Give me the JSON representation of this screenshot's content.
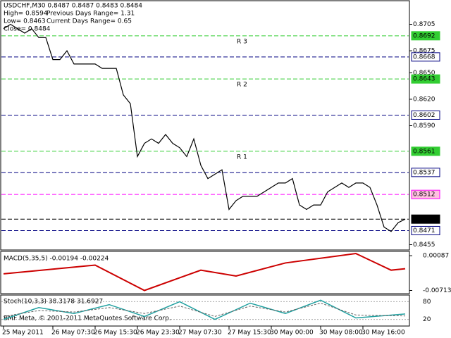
{
  "chart_data": {
    "type": "line",
    "title": "USDCHF,M30  0.8487 0.8487 0.8483 0.8484",
    "info": [
      "High= 0.8594",
      "Previous Days Range= 1.31",
      "Low= 0.8463",
      "Current Days Range= 0.65",
      "Close= 0.8484"
    ],
    "copyright": "BMF Meta, © 2001-2011 MetaQuotes Software Corp.",
    "categories": [
      "25 May 2011",
      null,
      null,
      null,
      null,
      null,
      null,
      "26 May 07:30",
      null,
      null,
      null,
      null,
      null,
      "26 May 15:30",
      null,
      null,
      null,
      null,
      null,
      "26 May 23:30",
      null,
      null,
      null,
      null,
      null,
      "27 May 07:30",
      null,
      null,
      null,
      null,
      null,
      null,
      "27 May 15:30",
      null,
      null,
      null,
      null,
      null,
      "30 May 00:00",
      null,
      null,
      null,
      null,
      null,
      null,
      "30 May 08:00",
      null,
      null,
      null,
      null,
      null,
      "30 May 16:00",
      null,
      null,
      null,
      null,
      null,
      null
    ],
    "series": [
      {
        "name": "USDCHF",
        "color": "#000000",
        "values": [
          0.87,
          0.8705,
          0.87,
          0.8695,
          0.87,
          0.869,
          0.869,
          0.8665,
          0.8665,
          0.8675,
          0.866,
          0.866,
          0.866,
          0.866,
          0.8655,
          0.8655,
          0.8655,
          0.8625,
          0.8615,
          0.8555,
          0.857,
          0.8575,
          0.857,
          0.858,
          0.857,
          0.8565,
          0.8555,
          0.8575,
          0.8545,
          0.853,
          0.8535,
          0.854,
          0.8495,
          0.8505,
          0.851,
          0.851,
          0.851,
          0.8515,
          0.852,
          0.8525,
          0.8525,
          0.853,
          0.85,
          0.8495,
          0.85,
          0.85,
          0.8515,
          0.852,
          0.8525,
          0.852,
          0.8525,
          0.8525,
          0.852,
          0.85,
          0.8475,
          0.847,
          0.848,
          0.8484
        ]
      }
    ],
    "ylim": [
      0.8449,
      0.8731
    ],
    "yticks": [
      0.8705,
      0.8675,
      {
        "value": 0.865,
        "label": "0.8650"
      },
      {
        "value": 0.862,
        "label": "0.8620"
      },
      {
        "value": 0.859,
        "label": "0.8590"
      },
      0.8455
    ],
    "levels": [
      {
        "value": 0.8692,
        "color": "#32cd32",
        "label": "R 3",
        "box": "#32cd32"
      },
      {
        "value": 0.8668,
        "color": "#000080",
        "box": "#ffffff"
      },
      {
        "value": 0.8643,
        "color": "#32cd32",
        "label": "R 2",
        "box": "#32cd32"
      },
      {
        "value": 0.8602,
        "color": "#000080",
        "box": "#ffffff"
      },
      {
        "value": 0.8561,
        "color": "#32cd32",
        "label": "R 1",
        "box": "#32cd32"
      },
      {
        "value": 0.8537,
        "color": "#000080",
        "box": "#ffffff"
      },
      {
        "value": 0.8512,
        "color": "#ff00ff",
        "box": "#ffc0e0"
      },
      {
        "value": 0.8484,
        "color": "#000000",
        "box": "#000000"
      },
      {
        "value": 0.8471,
        "color": "#000080",
        "box": "#ffffff"
      }
    ],
    "macd": {
      "title": "MACD(5,35,5) -0.00194 -0.00224",
      "color": "#cc0000",
      "x": [
        0,
        13,
        20,
        28,
        33,
        40,
        50,
        55,
        57
      ],
      "values": [
        -0.0033,
        -0.0013,
        -0.00713,
        -0.00246,
        -0.0038,
        -0.0008,
        0.00137,
        -0.00246,
        -0.00213
      ],
      "ylim": [
        -0.0077,
        0.0017
      ],
      "yticks": [
        0.00087,
        -0.00713
      ]
    },
    "stoch": {
      "title": "Stoch(10,3,3) 38.3178 31.6927",
      "x": [
        0,
        5,
        10,
        15,
        20,
        25,
        30,
        35,
        40,
        45,
        50,
        57
      ],
      "series": [
        {
          "color": "#20a0a0",
          "values": [
            20,
            60,
            40,
            70,
            30,
            80,
            20,
            75,
            40,
            85,
            25,
            38.3178
          ]
        },
        {
          "color": "#606060",
          "values": [
            30,
            50,
            45,
            60,
            40,
            65,
            30,
            65,
            45,
            75,
            35,
            31.6927
          ]
        }
      ],
      "ylim": [
        0,
        100
      ],
      "yticks": [
        80,
        20
      ]
    }
  }
}
